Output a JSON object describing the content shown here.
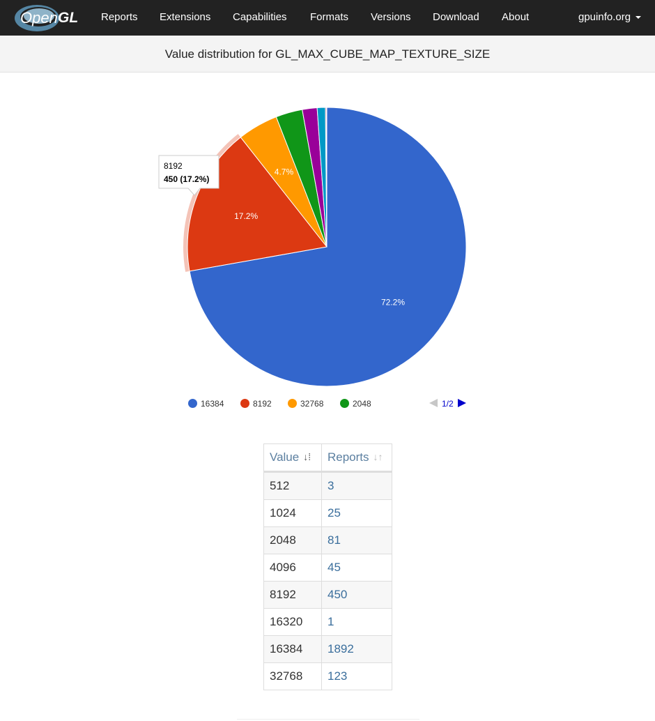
{
  "nav": {
    "logo_text": "OpenGL",
    "items": [
      "Reports",
      "Extensions",
      "Capabilities",
      "Formats",
      "Versions",
      "Download",
      "About"
    ],
    "site": "gpuinfo.org"
  },
  "page_title": "Value distribution for GL_MAX_CUBE_MAP_TEXTURE_SIZE",
  "chart_data": {
    "type": "pie",
    "slices": [
      {
        "label": "16384",
        "value": 1892,
        "color": "#3366cc",
        "pct_label": "72.2%"
      },
      {
        "label": "8192",
        "value": 450,
        "color": "#dc3912",
        "pct_label": "17.2%"
      },
      {
        "label": "32768",
        "value": 123,
        "color": "#ff9900",
        "pct_label": "4.7%"
      },
      {
        "label": "2048",
        "value": 81,
        "color": "#109618",
        "pct_label": ""
      },
      {
        "label": "4096",
        "value": 45,
        "color": "#990099",
        "pct_label": ""
      },
      {
        "label": "1024",
        "value": 25,
        "color": "#0099c6",
        "pct_label": ""
      },
      {
        "label": "512",
        "value": 3,
        "color": "#dd4477",
        "pct_label": ""
      },
      {
        "label": "16320",
        "value": 1,
        "color": "#66aa00",
        "pct_label": ""
      }
    ],
    "highlighted": "8192",
    "tooltip": {
      "title": "8192",
      "detail": "450 (17.2%)"
    },
    "legend": {
      "placement": "bottom",
      "visible": [
        "16384",
        "8192",
        "32768",
        "2048"
      ],
      "page": "1/2"
    }
  },
  "table": {
    "headers": [
      "Value",
      "Reports"
    ],
    "rows": [
      {
        "value": "512",
        "reports": "3"
      },
      {
        "value": "1024",
        "reports": "25"
      },
      {
        "value": "2048",
        "reports": "81"
      },
      {
        "value": "4096",
        "reports": "45"
      },
      {
        "value": "8192",
        "reports": "450"
      },
      {
        "value": "16320",
        "reports": "1"
      },
      {
        "value": "16384",
        "reports": "1892"
      },
      {
        "value": "32768",
        "reports": "123"
      }
    ]
  }
}
